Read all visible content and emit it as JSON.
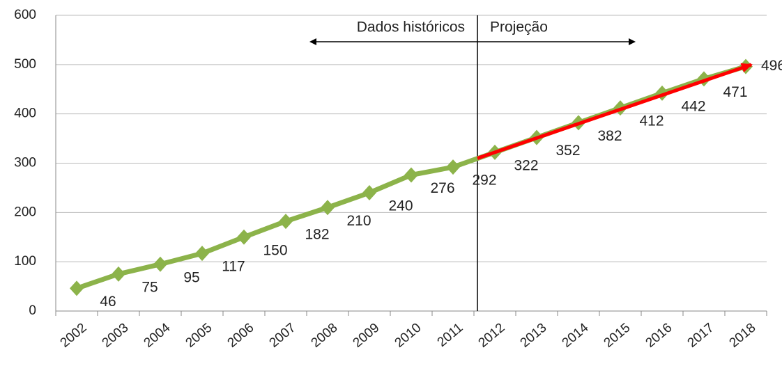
{
  "chart_data": {
    "type": "line",
    "categories": [
      "2002",
      "2003",
      "2004",
      "2005",
      "2006",
      "2007",
      "2008",
      "2009",
      "2010",
      "2011",
      "2012",
      "2013",
      "2014",
      "2015",
      "2016",
      "2017",
      "2018"
    ],
    "series": [
      {
        "color": "#8cb34a",
        "values": [
          46,
          75,
          95,
          117,
          150,
          182,
          210,
          240,
          276,
          292,
          322,
          352,
          382,
          412,
          442,
          471,
          496
        ]
      }
    ],
    "ylim": [
      0,
      600
    ],
    "yticks": [
      0,
      100,
      200,
      300,
      400,
      500,
      600
    ],
    "grid": true,
    "annotations": [
      "Dados históricos",
      "Projeção"
    ]
  }
}
